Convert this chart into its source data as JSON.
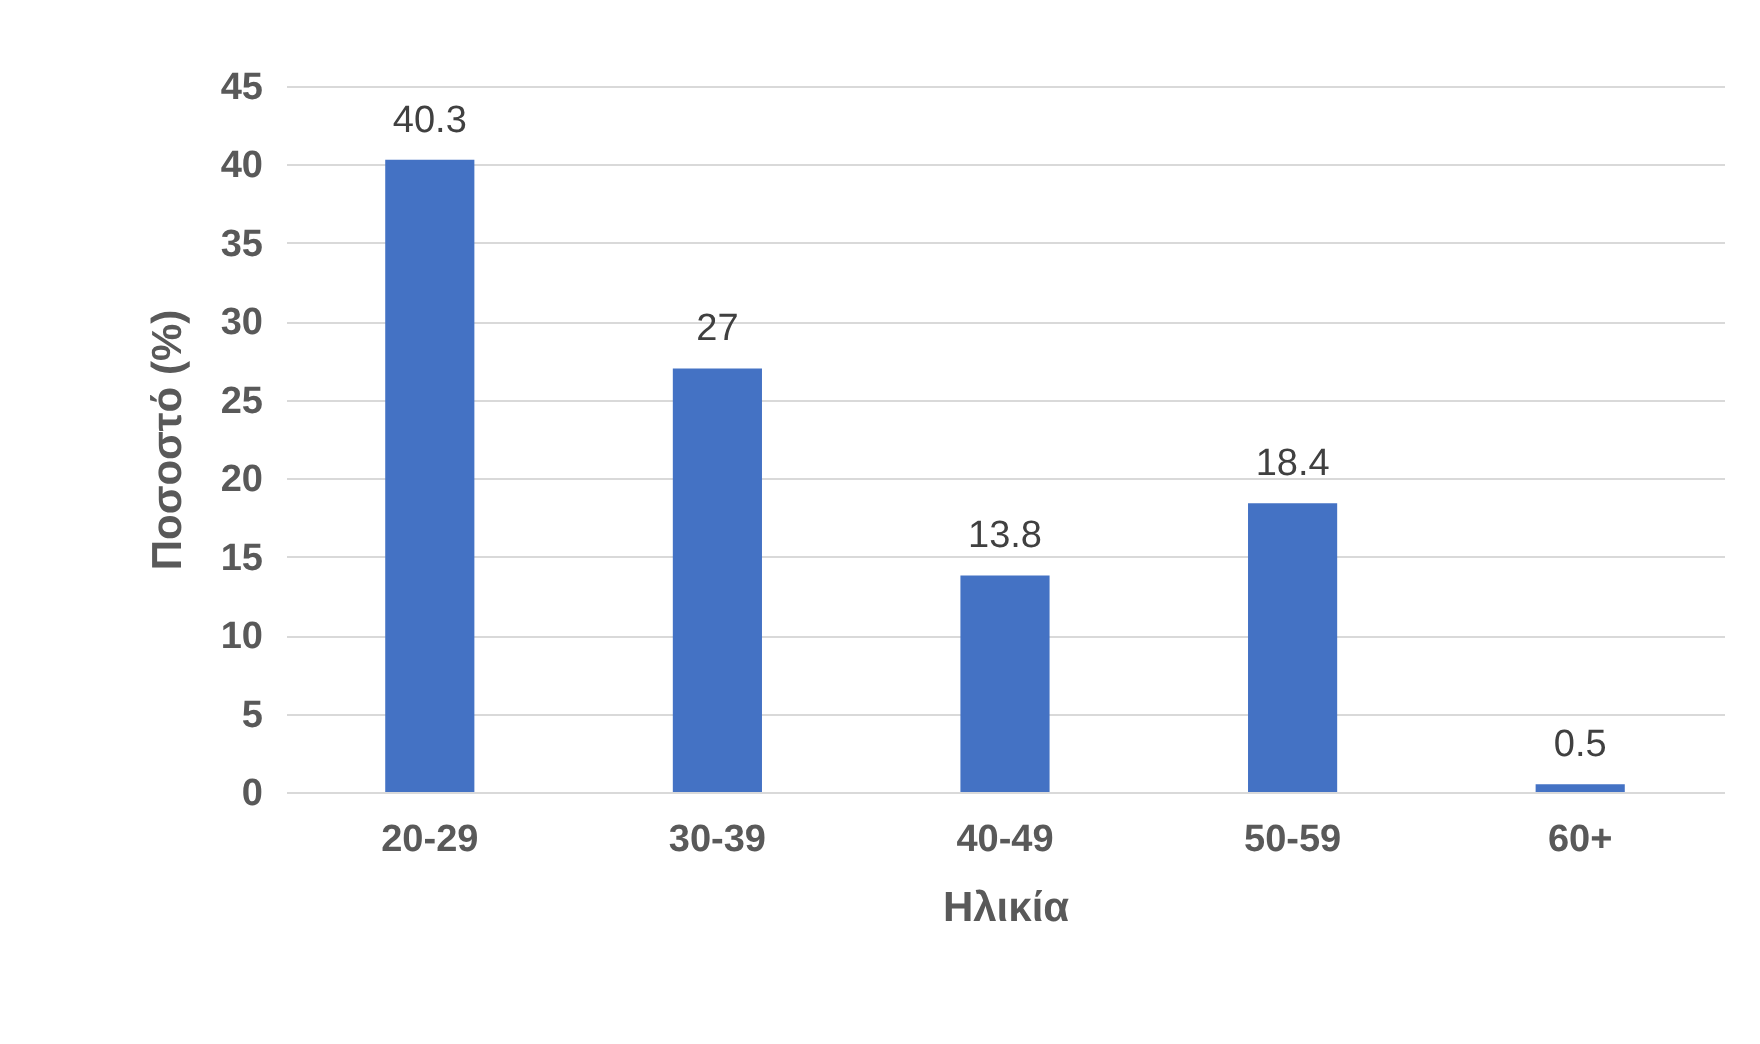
{
  "chart_data": {
    "type": "bar",
    "xlabel": "Ηλικία",
    "ylabel": "Ποσοστό (%)",
    "categories": [
      "20-29",
      "30-39",
      "40-49",
      "50-59",
      "60+"
    ],
    "values": [
      40.3,
      27,
      13.8,
      18.4,
      0.5
    ],
    "color": "#4472c4",
    "ylim": [
      0,
      45
    ],
    "yticks": [
      0,
      5,
      10,
      15,
      20,
      25,
      30,
      35,
      40,
      45
    ],
    "grid": "y",
    "data_labels": true
  }
}
